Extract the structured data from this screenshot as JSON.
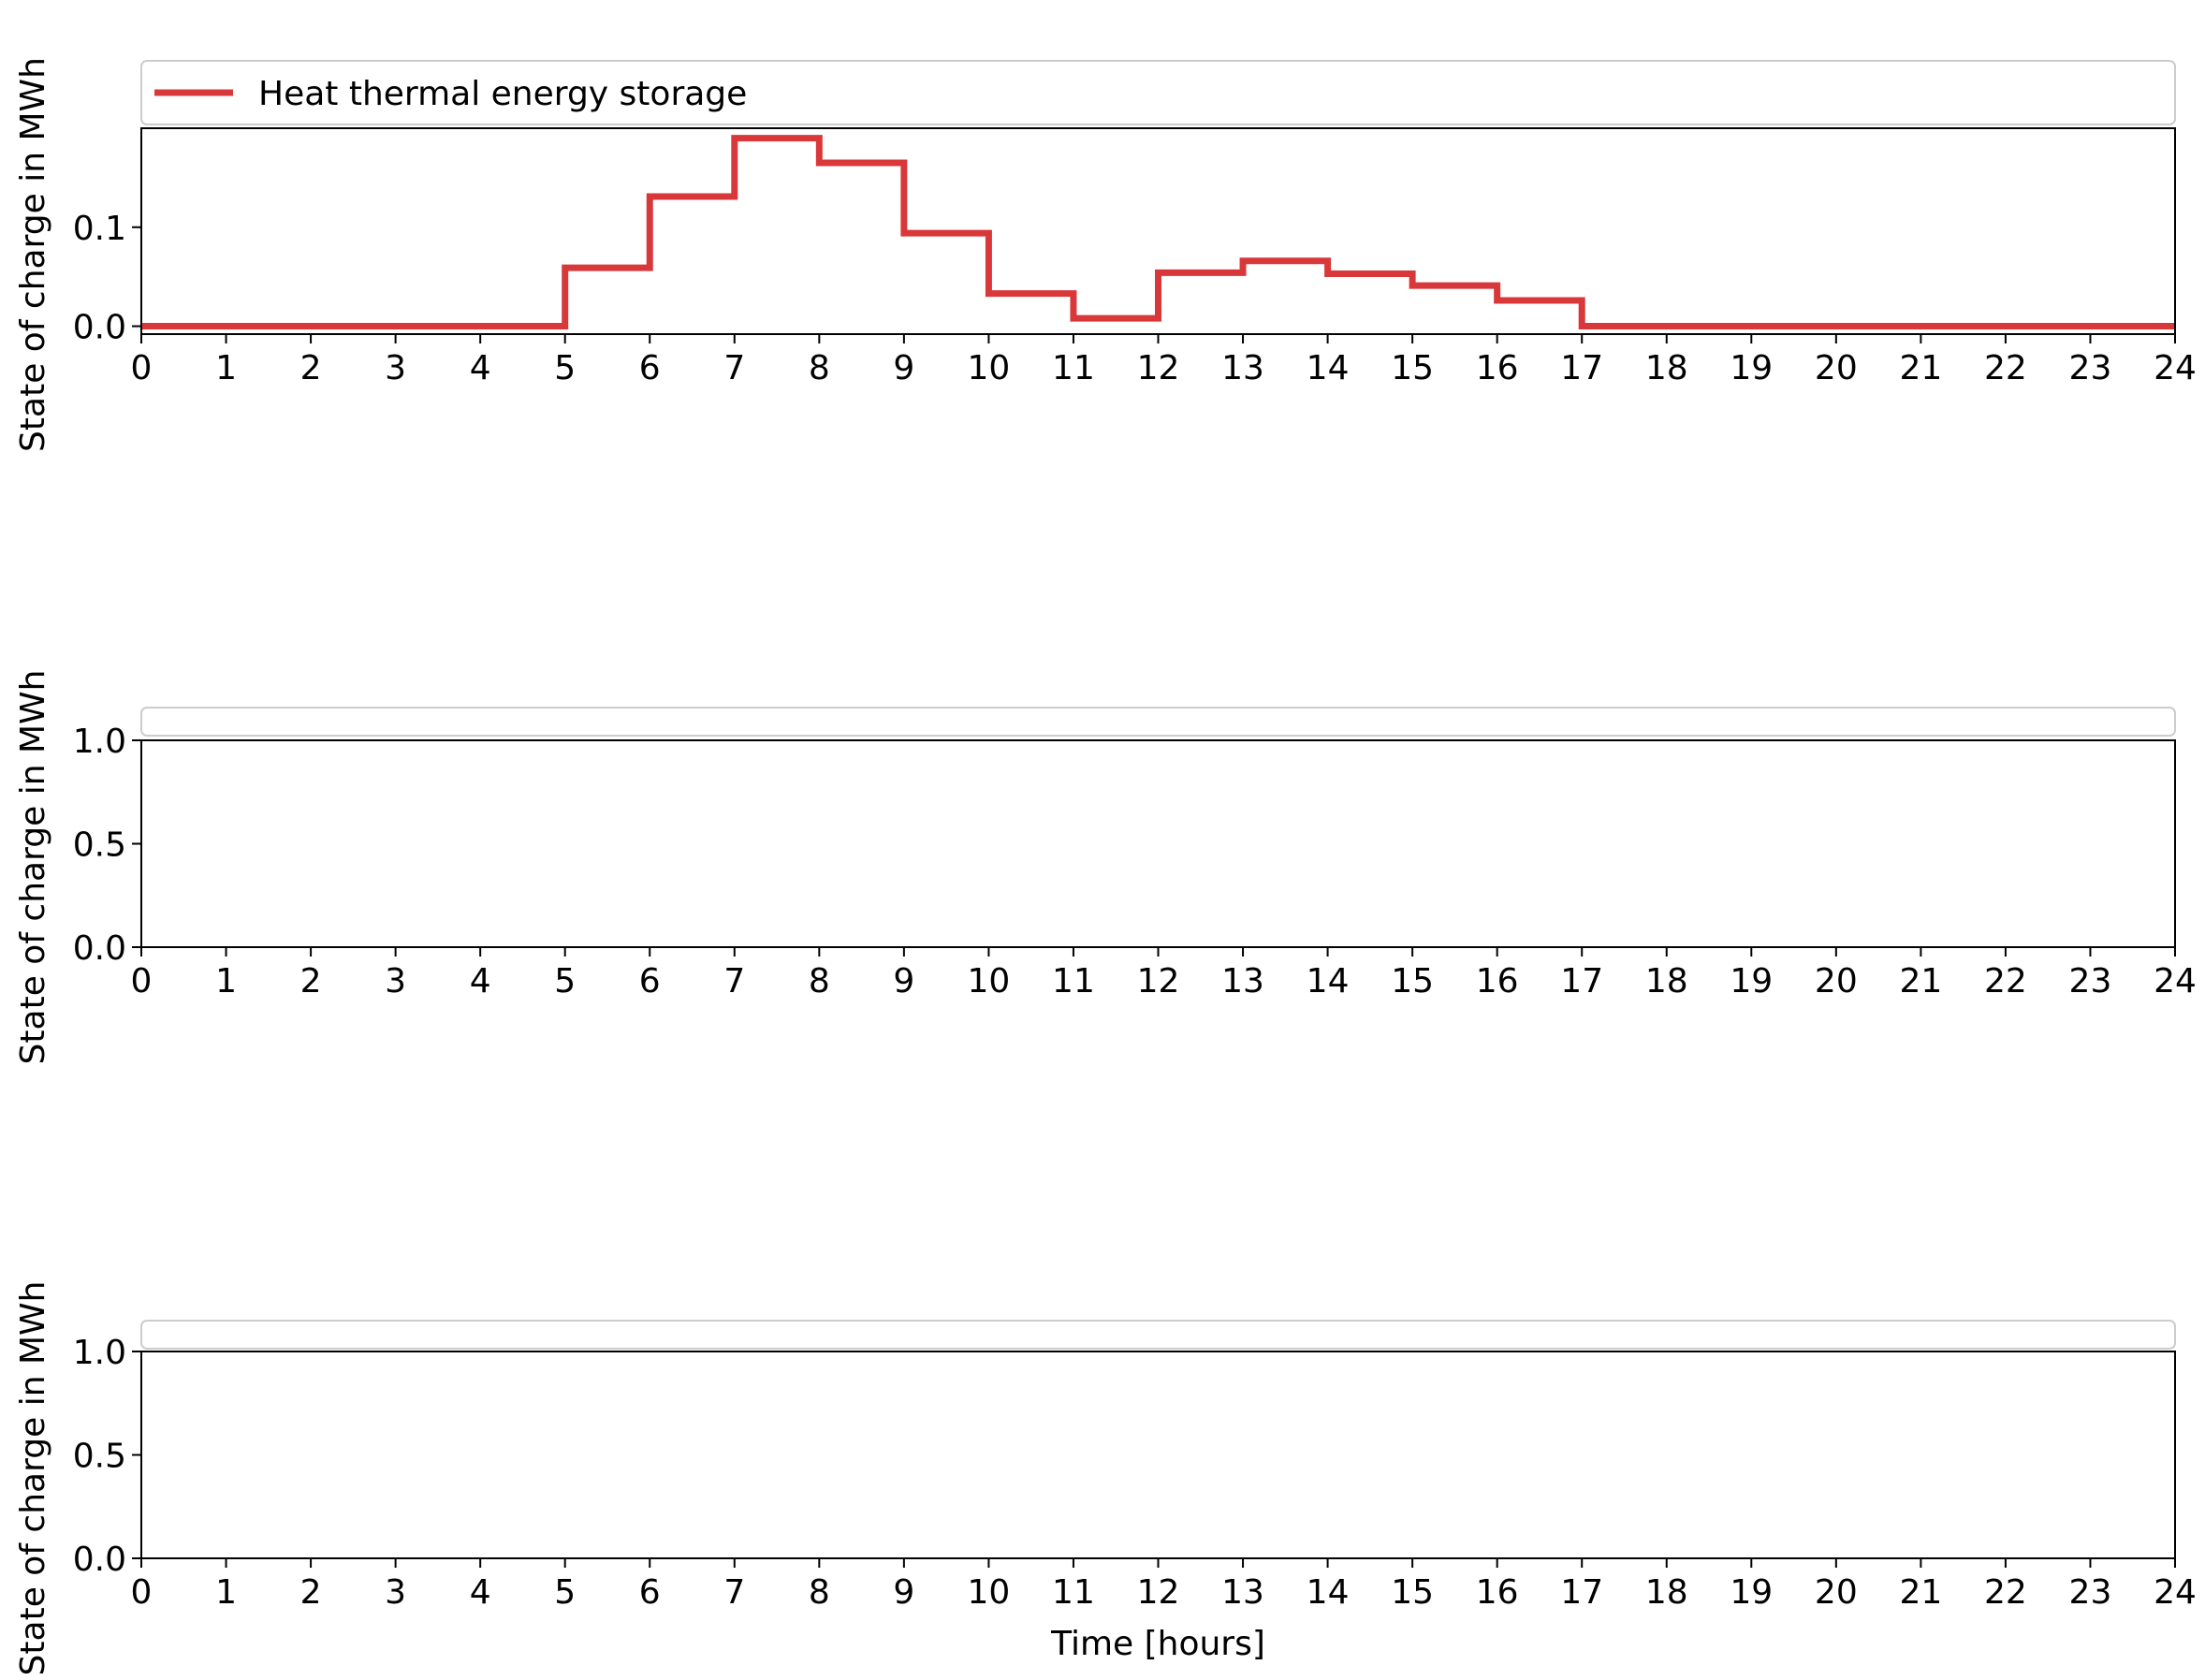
{
  "chart_data": [
    {
      "type": "line",
      "step": "post",
      "xlabel": "",
      "ylabel": "State of charge in MWh",
      "xlim": [
        0,
        24
      ],
      "ylim": [
        -0.008,
        0.2
      ],
      "xticks": [
        "0",
        "1",
        "2",
        "3",
        "4",
        "5",
        "6",
        "7",
        "8",
        "9",
        "10",
        "11",
        "12",
        "13",
        "14",
        "15",
        "16",
        "17",
        "18",
        "19",
        "20",
        "21",
        "22",
        "23",
        "24"
      ],
      "yticks": [
        0.0,
        0.1
      ],
      "ytick_labels": [
        "0.0",
        "0.1"
      ],
      "legend": "top",
      "series": [
        {
          "name": "Heat thermal energy storage",
          "color": "#d9383a",
          "x": [
            0,
            1,
            2,
            3,
            4,
            5,
            6,
            7,
            8,
            9,
            10,
            11,
            12,
            13,
            14,
            15,
            16,
            17,
            18,
            19,
            20,
            21,
            22,
            23,
            24
          ],
          "values": [
            0,
            0,
            0,
            0,
            0,
            0.059,
            0.131,
            0.19,
            0.165,
            0.094,
            0.033,
            0.008,
            0.054,
            0.066,
            0.053,
            0.041,
            0.026,
            0,
            0,
            0,
            0,
            0,
            0,
            0,
            0
          ]
        }
      ]
    },
    {
      "type": "line",
      "step": "post",
      "xlabel": "",
      "ylabel": "State of charge in MWh",
      "xlim": [
        0,
        24
      ],
      "ylim": [
        0,
        1.0
      ],
      "xticks": [
        "0",
        "1",
        "2",
        "3",
        "4",
        "5",
        "6",
        "7",
        "8",
        "9",
        "10",
        "11",
        "12",
        "13",
        "14",
        "15",
        "16",
        "17",
        "18",
        "19",
        "20",
        "21",
        "22",
        "23",
        "24"
      ],
      "yticks": [
        0.0,
        0.5,
        1.0
      ],
      "ytick_labels": [
        "0.0",
        "0.5",
        "1.0"
      ],
      "legend": "top",
      "series": []
    },
    {
      "type": "line",
      "step": "post",
      "xlabel": "Time [hours]",
      "ylabel": "State of charge in MWh",
      "xlim": [
        0,
        24
      ],
      "ylim": [
        0,
        1.0
      ],
      "xticks": [
        "0",
        "1",
        "2",
        "3",
        "4",
        "5",
        "6",
        "7",
        "8",
        "9",
        "10",
        "11",
        "12",
        "13",
        "14",
        "15",
        "16",
        "17",
        "18",
        "19",
        "20",
        "21",
        "22",
        "23",
        "24"
      ],
      "yticks": [
        0.0,
        0.5,
        1.0
      ],
      "ytick_labels": [
        "0.0",
        "0.5",
        "1.0"
      ],
      "legend": "top",
      "series": []
    }
  ]
}
